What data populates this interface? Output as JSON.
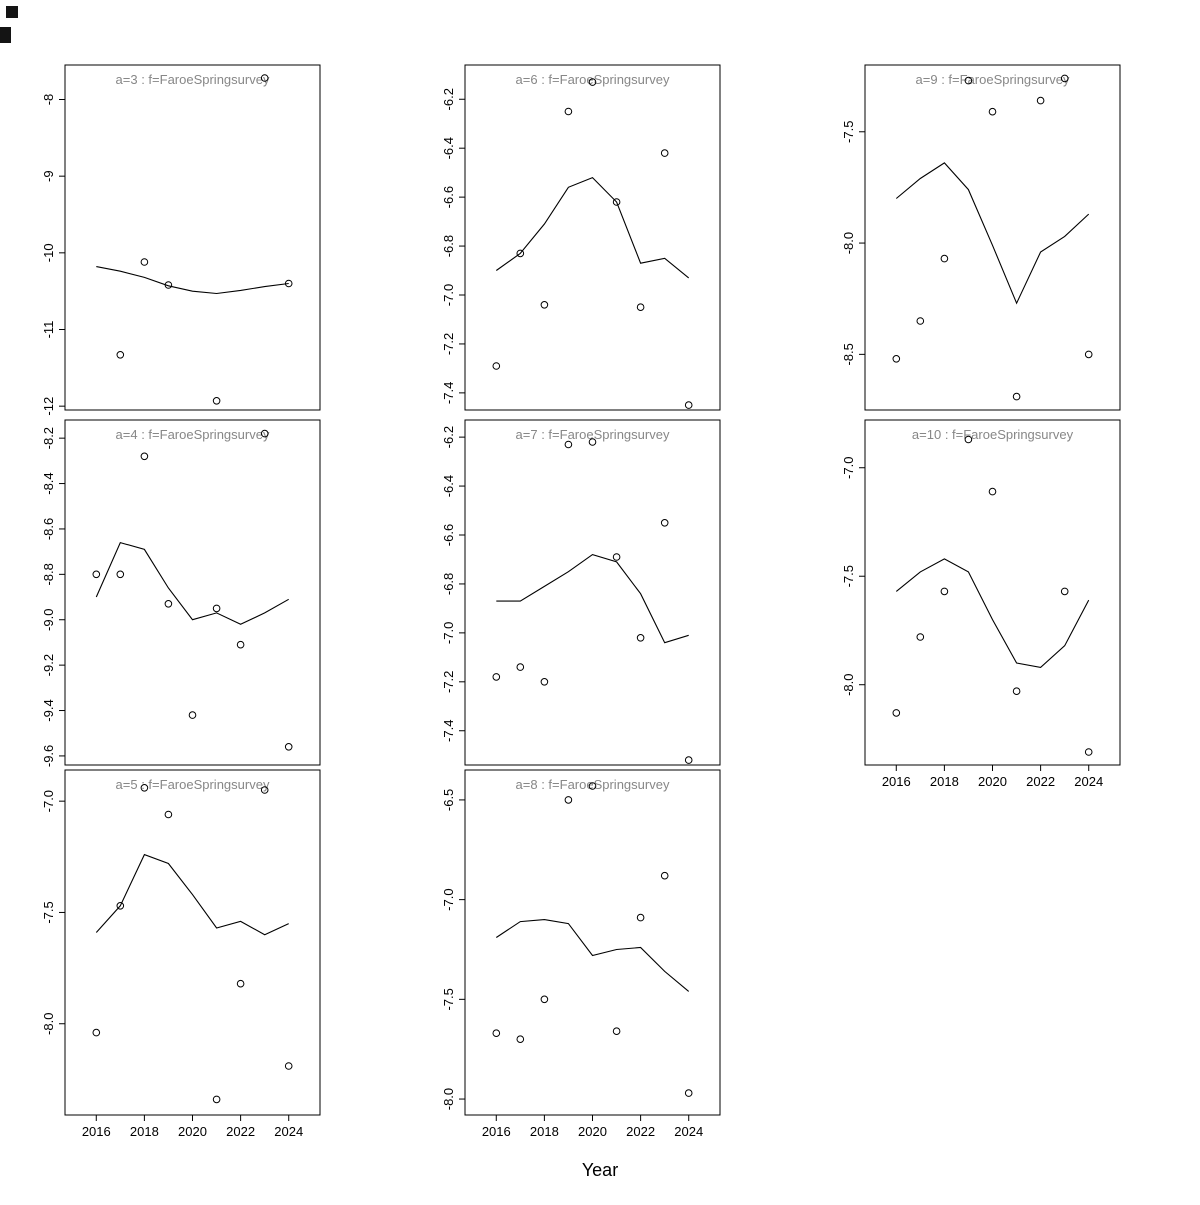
{
  "figure": {
    "xlabel": "Year",
    "x_tick_labels": [
      "2016",
      "2018",
      "2020",
      "2022",
      "2024"
    ],
    "x_tick_values": [
      2016,
      2018,
      2020,
      2022,
      2024
    ],
    "x_range": [
      2014.7,
      2025.3
    ],
    "years": [
      2016,
      2017,
      2018,
      2019,
      2020,
      2021,
      2022,
      2023,
      2024
    ],
    "title_color": "#878787",
    "axis_color": "#000000"
  },
  "chart_data": {
    "type": "scatter",
    "note": "8 small-multiple panels: observed points (open circles) and fitted line vs Year",
    "panels": [
      {
        "id": "a3",
        "title": "a=3  :  f=FaroeSpringsurvey",
        "col": 0,
        "row": 0,
        "ylim": [
          -12.05,
          -7.55
        ],
        "y_ticks": [
          -8,
          -9,
          -10,
          -11,
          -12
        ],
        "y_tick_labels": [
          "-8",
          "-9",
          "-10",
          "-11",
          "-12"
        ],
        "show_x_axis": false,
        "points": {
          "x": [
            2017,
            2018,
            2019,
            2021,
            2023,
            2024
          ],
          "y": [
            -11.33,
            -10.12,
            -10.42,
            -11.93,
            -7.72,
            -10.4
          ]
        },
        "line": {
          "x": [
            2016,
            2017,
            2018,
            2019,
            2020,
            2021,
            2022,
            2023,
            2024
          ],
          "y": [
            -10.18,
            -10.24,
            -10.32,
            -10.43,
            -10.5,
            -10.53,
            -10.49,
            -10.44,
            -10.4
          ]
        }
      },
      {
        "id": "a4",
        "title": "a=4  :  f=FaroeSpringsurvey",
        "col": 0,
        "row": 1,
        "ylim": [
          -9.64,
          -8.12
        ],
        "y_ticks": [
          -8.2,
          -8.4,
          -8.6,
          -8.8,
          -9.0,
          -9.2,
          -9.4,
          -9.6
        ],
        "y_tick_labels": [
          "-8.2",
          "-8.4",
          "-8.6",
          "-8.8",
          "-9.0",
          "-9.2",
          "-9.4",
          "-9.6"
        ],
        "show_x_axis": false,
        "points": {
          "x": [
            2016,
            2017,
            2018,
            2019,
            2020,
            2021,
            2022,
            2023,
            2024
          ],
          "y": [
            -8.8,
            -8.8,
            -8.28,
            -8.93,
            -9.42,
            -8.95,
            -9.11,
            -8.18,
            -9.56
          ]
        },
        "line": {
          "x": [
            2016,
            2017,
            2018,
            2019,
            2020,
            2021,
            2022,
            2023,
            2024
          ],
          "y": [
            -8.9,
            -8.66,
            -8.69,
            -8.86,
            -9.0,
            -8.97,
            -9.02,
            -8.97,
            -8.91
          ]
        }
      },
      {
        "id": "a5",
        "title": "a=5  :  f=FaroeSpringsurvey",
        "col": 0,
        "row": 2,
        "ylim": [
          -8.41,
          -6.86
        ],
        "y_ticks": [
          -7.0,
          -7.5,
          -8.0
        ],
        "y_tick_labels": [
          "-7.0",
          "-7.5",
          "-8.0"
        ],
        "show_x_axis": true,
        "points": {
          "x": [
            2016,
            2017,
            2018,
            2019,
            2021,
            2022,
            2023,
            2024
          ],
          "y": [
            -8.04,
            -7.47,
            -6.94,
            -7.06,
            -8.34,
            -7.82,
            -6.95,
            -8.19
          ]
        },
        "line": {
          "x": [
            2016,
            2017,
            2018,
            2019,
            2020,
            2021,
            2022,
            2023,
            2024
          ],
          "y": [
            -7.59,
            -7.47,
            -7.24,
            -7.28,
            -7.42,
            -7.57,
            -7.54,
            -7.6,
            -7.55
          ]
        }
      },
      {
        "id": "a6",
        "title": "a=6  :  f=FaroeSpringsurvey",
        "col": 1,
        "row": 0,
        "ylim": [
          -7.47,
          -6.06
        ],
        "y_ticks": [
          -6.2,
          -6.4,
          -6.6,
          -6.8,
          -7.0,
          -7.2,
          -7.4
        ],
        "y_tick_labels": [
          "-6.2",
          "-6.4",
          "-6.6",
          "-6.8",
          "-7.0",
          "-7.2",
          "-7.4"
        ],
        "show_x_axis": false,
        "points": {
          "x": [
            2016,
            2017,
            2018,
            2019,
            2020,
            2021,
            2022,
            2023,
            2024
          ],
          "y": [
            -7.29,
            -6.83,
            -7.04,
            -6.25,
            -6.13,
            -6.62,
            -7.05,
            -6.42,
            -7.45
          ]
        },
        "line": {
          "x": [
            2016,
            2017,
            2018,
            2019,
            2020,
            2021,
            2022,
            2023,
            2024
          ],
          "y": [
            -6.9,
            -6.83,
            -6.71,
            -6.56,
            -6.52,
            -6.62,
            -6.87,
            -6.85,
            -6.93
          ]
        }
      },
      {
        "id": "a7",
        "title": "a=7  :  f=FaroeSpringsurvey",
        "col": 1,
        "row": 1,
        "ylim": [
          -7.54,
          -6.13
        ],
        "y_ticks": [
          -6.2,
          -6.4,
          -6.6,
          -6.8,
          -7.0,
          -7.2,
          -7.4
        ],
        "y_tick_labels": [
          "-6.2",
          "-6.4",
          "-6.6",
          "-6.8",
          "-7.0",
          "-7.2",
          "-7.4"
        ],
        "show_x_axis": false,
        "points": {
          "x": [
            2016,
            2017,
            2018,
            2019,
            2020,
            2021,
            2022,
            2023,
            2024
          ],
          "y": [
            -7.18,
            -7.14,
            -7.2,
            -6.23,
            -6.22,
            -6.69,
            -7.02,
            -6.55,
            -7.52
          ]
        },
        "line": {
          "x": [
            2016,
            2017,
            2018,
            2019,
            2020,
            2021,
            2022,
            2023,
            2024
          ],
          "y": [
            -6.87,
            -6.87,
            -6.81,
            -6.75,
            -6.68,
            -6.71,
            -6.84,
            -7.04,
            -7.01
          ]
        }
      },
      {
        "id": "a8",
        "title": "a=8  :  f=FaroeSpringsurvey",
        "col": 1,
        "row": 2,
        "ylim": [
          -8.08,
          -6.35
        ],
        "y_ticks": [
          -6.5,
          -7.0,
          -7.5,
          -8.0
        ],
        "y_tick_labels": [
          "-6.5",
          "-7.0",
          "-7.5",
          "-8.0"
        ],
        "show_x_axis": true,
        "points": {
          "x": [
            2016,
            2017,
            2018,
            2019,
            2020,
            2021,
            2022,
            2023,
            2024
          ],
          "y": [
            -7.67,
            -7.7,
            -7.5,
            -6.5,
            -6.43,
            -7.66,
            -7.09,
            -6.88,
            -7.97
          ]
        },
        "line": {
          "x": [
            2016,
            2017,
            2018,
            2019,
            2020,
            2021,
            2022,
            2023,
            2024
          ],
          "y": [
            -7.19,
            -7.11,
            -7.1,
            -7.12,
            -7.28,
            -7.25,
            -7.24,
            -7.36,
            -7.46
          ]
        }
      },
      {
        "id": "a9",
        "title": "a=9  :  f=FaroeSpringsurvey",
        "col": 2,
        "row": 0,
        "ylim": [
          -8.75,
          -7.2
        ],
        "y_ticks": [
          -7.5,
          -8.0,
          -8.5
        ],
        "y_tick_labels": [
          "-7.5",
          "-8.0",
          "-8.5"
        ],
        "show_x_axis": false,
        "points": {
          "x": [
            2016,
            2017,
            2018,
            2019,
            2020,
            2021,
            2022,
            2023,
            2024
          ],
          "y": [
            -8.52,
            -8.35,
            -8.07,
            -7.27,
            -7.41,
            -8.69,
            -7.36,
            -7.26,
            -8.5
          ]
        },
        "line": {
          "x": [
            2016,
            2017,
            2018,
            2019,
            2020,
            2021,
            2022,
            2023,
            2024
          ],
          "y": [
            -7.8,
            -7.71,
            -7.64,
            -7.76,
            -8.01,
            -8.27,
            -8.04,
            -7.97,
            -7.87
          ]
        }
      },
      {
        "id": "a10",
        "title": "a=10  :  f=FaroeSpringsurvey",
        "col": 2,
        "row": 1,
        "ylim": [
          -8.37,
          -6.78
        ],
        "y_ticks": [
          -7.0,
          -7.5,
          -8.0
        ],
        "y_tick_labels": [
          "-7.0",
          "-7.5",
          "-8.0"
        ],
        "show_x_axis": true,
        "points": {
          "x": [
            2016,
            2017,
            2018,
            2019,
            2020,
            2021,
            2023,
            2024
          ],
          "y": [
            -8.13,
            -7.78,
            -7.57,
            -6.87,
            -7.11,
            -8.03,
            -7.57,
            -8.31
          ]
        },
        "line": {
          "x": [
            2016,
            2017,
            2018,
            2019,
            2020,
            2021,
            2022,
            2023,
            2024
          ],
          "y": [
            -7.57,
            -7.48,
            -7.42,
            -7.48,
            -7.7,
            -7.9,
            -7.92,
            -7.82,
            -7.61
          ]
        }
      }
    ]
  }
}
